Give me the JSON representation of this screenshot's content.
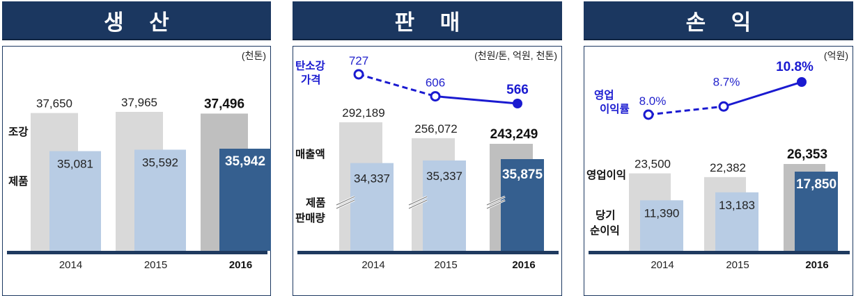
{
  "headers": [
    "생 산",
    "판 매",
    "손 익"
  ],
  "chart_data": [
    {
      "type": "bar",
      "title": "생 산",
      "unit": "(천톤)",
      "categories": [
        "2014",
        "2015",
        "2016"
      ],
      "series": [
        {
          "name": "조강",
          "values": [
            37650,
            37965,
            37496
          ],
          "labels": [
            "37,650",
            "37,965",
            "37,496"
          ]
        },
        {
          "name": "제품",
          "values": [
            35081,
            35592,
            35942
          ],
          "labels": [
            "35,081",
            "35,592",
            "35,942"
          ]
        }
      ],
      "row_labels": [
        "조강",
        "제품"
      ],
      "highlight": "2016"
    },
    {
      "type": "bar",
      "title": "판 매",
      "unit": "(천원/톤, 억원, 천톤)",
      "categories": [
        "2014",
        "2015",
        "2016"
      ],
      "series": [
        {
          "name": "매출액",
          "values": [
            292189,
            256072,
            243249
          ],
          "labels": [
            "292,189",
            "256,072",
            "243,249"
          ]
        },
        {
          "name": "제품 판매량",
          "values": [
            34337,
            35337,
            35875
          ],
          "labels": [
            "34,337",
            "35,337",
            "35,875"
          ]
        }
      ],
      "line": {
        "name": "탄소강 가격",
        "values": [
          727,
          606,
          566
        ],
        "labels": [
          "727",
          "606",
          "566"
        ]
      },
      "row_labels": [
        "매출액",
        "제품",
        "판매량"
      ],
      "line_label": [
        "탄소강",
        "가격"
      ],
      "highlight": "2016"
    },
    {
      "type": "bar",
      "title": "손 익",
      "unit": "(억원)",
      "categories": [
        "2014",
        "2015",
        "2016"
      ],
      "series": [
        {
          "name": "영업이익",
          "values": [
            23500,
            22382,
            26353
          ],
          "labels": [
            "23,500",
            "22,382",
            "26,353"
          ]
        },
        {
          "name": "당기 순이익",
          "values": [
            11390,
            13183,
            17850
          ],
          "labels": [
            "11,390",
            "13,183",
            "17,850"
          ]
        }
      ],
      "line": {
        "name": "영업 이익률",
        "values": [
          8.0,
          8.7,
          10.8
        ],
        "labels": [
          "8.0%",
          "8.7%",
          "10.8%"
        ]
      },
      "row_labels": [
        "영업이익",
        "당기",
        "순이익"
      ],
      "line_label": [
        "영업",
        "이익률"
      ],
      "highlight": "2016"
    }
  ],
  "colors": {
    "header_bg": "#1b3760",
    "back_bar": "#d9d9d9",
    "back_bar_highlight": "#bfbfbf",
    "front_bar": "#b8cce4",
    "front_bar_highlight": "#355f8f",
    "baseline": "#1f3a5f",
    "line": "#1a1ad0"
  }
}
